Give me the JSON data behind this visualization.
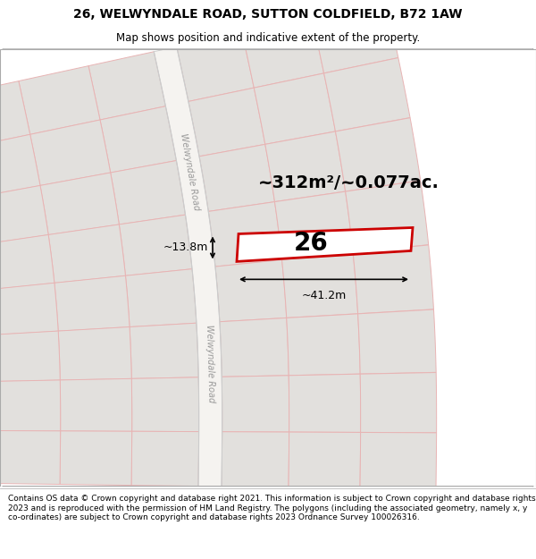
{
  "title_line1": "26, WELWYNDALE ROAD, SUTTON COLDFIELD, B72 1AW",
  "title_line2": "Map shows position and indicative extent of the property.",
  "area_label": "~312m²/~0.077ac.",
  "width_label": "~41.2m",
  "height_label": "~13.8m",
  "house_number": "26",
  "footer_text": "Contains OS data © Crown copyright and database right 2021. This information is subject to Crown copyright and database rights 2023 and is reproduced with the permission of HM Land Registry. The polygons (including the associated geometry, namely x, y co-ordinates) are subject to Crown copyright and database rights 2023 Ordnance Survey 100026316.",
  "map_bg": "#eeece9",
  "road_label_upper": "Welwyndale Road",
  "road_label_lower": "Welwyndale Road",
  "plot_color": "#cc0000",
  "road_line_color": "#e8b4b4",
  "block_fill": "#e2e0dd",
  "block_edge": "#e8b4b4",
  "road_fill": "#f5f3f0",
  "title_fs": 10,
  "subtitle_fs": 8.5,
  "area_fs": 14,
  "dim_fs": 9,
  "footer_fs": 6.5,
  "number_fs": 20
}
